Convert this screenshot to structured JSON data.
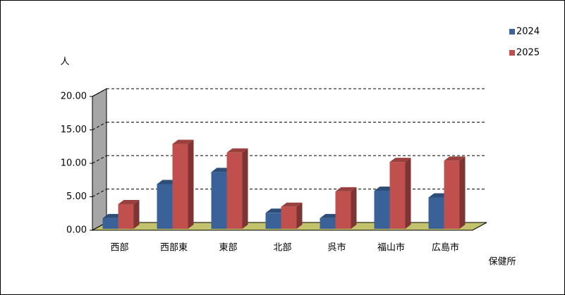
{
  "chart_data": {
    "type": "bar3d",
    "y_label": "人",
    "x_label": "保健所",
    "categories": [
      "西部",
      "西部東",
      "東部",
      "北部",
      "呉市",
      "福山市",
      "広島市"
    ],
    "series": [
      {
        "name": "2024",
        "color": "#3a6298",
        "values": [
          1.8,
          6.9,
          8.7,
          2.6,
          1.8,
          5.9,
          4.9
        ]
      },
      {
        "name": "2025",
        "color": "#c0504d",
        "values": [
          3.9,
          12.9,
          11.6,
          3.5,
          5.8,
          10.2,
          10.4
        ]
      }
    ],
    "ylim": [
      0,
      20
    ],
    "yticks": [
      {
        "value": 0,
        "label": "0.00"
      },
      {
        "value": 5,
        "label": "5.00"
      },
      {
        "value": 10,
        "label": "10.00"
      },
      {
        "value": 15,
        "label": "15.00"
      },
      {
        "value": 20,
        "label": "20.00"
      }
    ],
    "grid": true,
    "legend": "top-right"
  }
}
